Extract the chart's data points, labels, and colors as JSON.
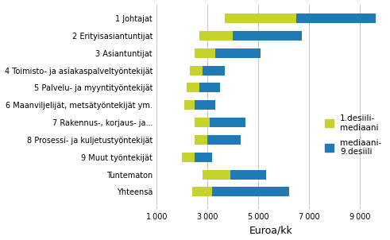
{
  "categories": [
    "1 Johtajat",
    "2 Erityisasiantuntijat",
    "3 Asiantuntijat",
    "4 Toimisto- ja asiakaspalveltyöntekijät",
    "5 Palvelu- ja myyntityöntekijät",
    "6 Maanviljelijät, metsätyöntekijät ym.",
    "7 Rakennus-, korjaus- ja...",
    "8 Prosessi- ja kuljetustyöntekijät",
    "9 Muut työntekijät",
    "Tuntematon",
    "Yhteensä"
  ],
  "d1_values": [
    3700,
    2700,
    2500,
    2300,
    2200,
    2100,
    2500,
    2500,
    2000,
    2800,
    2400
  ],
  "median_values": [
    6500,
    4000,
    3300,
    2800,
    2700,
    2500,
    3100,
    3000,
    2500,
    3900,
    3200
  ],
  "d9_values": [
    9600,
    6700,
    5100,
    3700,
    3500,
    3300,
    4500,
    4300,
    3200,
    5300,
    6200
  ],
  "bar_color_1": "#c7d32d",
  "bar_color_2": "#1f7ab5",
  "xlim_min": 1000,
  "xlim_max": 10000,
  "xticks": [
    1000,
    3000,
    5000,
    7000,
    9000
  ],
  "xtick_labels": [
    "1 000",
    "3 000",
    "5 000",
    "7 000",
    "9 000"
  ],
  "xlabel": "Euroa/kk",
  "legend_label_1": "1.desiili-\nmediaani",
  "legend_label_2": "mediaani-\n9.desiili",
  "background_color": "#ffffff",
  "grid_color": "#c8c8c8",
  "bar_height": 0.55,
  "tick_fontsize": 7,
  "xlabel_fontsize": 9,
  "legend_fontsize": 7.5
}
